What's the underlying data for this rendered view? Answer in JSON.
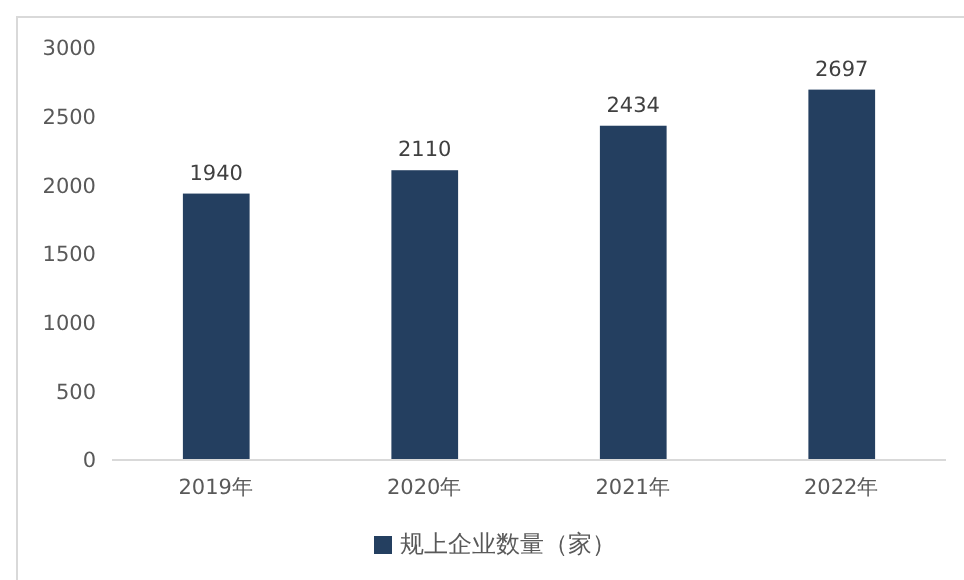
{
  "chart_data": {
    "type": "bar",
    "categories": [
      "2019年",
      "2020年",
      "2021年",
      "2022年"
    ],
    "series": [
      {
        "name": "规上企业数量（家）",
        "color": "#243f60",
        "values": [
          1940,
          2110,
          2434,
          2697
        ]
      }
    ],
    "ylim": [
      0,
      3000
    ],
    "yticks": [
      0,
      500,
      1000,
      1500,
      2000,
      2500,
      3000
    ],
    "data_labels": true,
    "grid": false,
    "legend": "bottom"
  }
}
